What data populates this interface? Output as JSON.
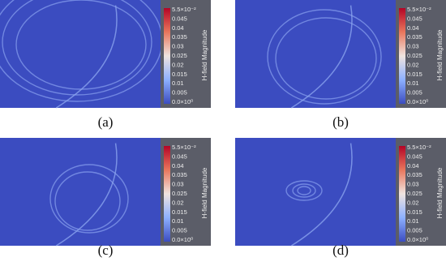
{
  "colorbar": {
    "title": "H-field Magnitude",
    "ticks": [
      "5.5×10⁻²",
      "0.045",
      "0.04",
      "0.035",
      "0.03",
      "0.025",
      "0.02",
      "0.015",
      "0.01",
      "0.005",
      "0.0×10⁰"
    ]
  },
  "panels": [
    {
      "label": "(a)"
    },
    {
      "label": "(b)"
    },
    {
      "label": "(c)"
    },
    {
      "label": "(d)"
    }
  ]
}
